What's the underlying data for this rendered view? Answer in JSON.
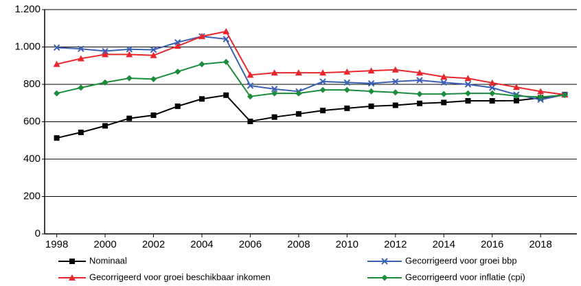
{
  "chart_data": {
    "type": "line",
    "x": [
      1998,
      1999,
      2000,
      2001,
      2002,
      2003,
      2004,
      2005,
      2006,
      2007,
      2008,
      2009,
      2010,
      2011,
      2012,
      2013,
      2014,
      2015,
      2016,
      2017,
      2018,
      2019
    ],
    "xlim": [
      1997.5,
      2019.5
    ],
    "xticks": [
      1998,
      2000,
      2002,
      2004,
      2006,
      2008,
      2010,
      2012,
      2014,
      2016,
      2018
    ],
    "ylim": [
      0,
      1200
    ],
    "yticks": [
      0,
      200,
      400,
      600,
      800,
      {
        "value": 1000,
        "label": "1.000"
      },
      {
        "value": 1200,
        "label": "1.200"
      }
    ],
    "grid": true,
    "series": [
      {
        "name": "Nominaal",
        "color": "#000000",
        "marker": "square",
        "values": [
          513,
          543,
          578,
          618,
          635,
          683,
          722,
          742,
          602,
          625,
          642,
          660,
          672,
          683,
          688,
          698,
          703,
          712,
          712,
          713,
          728,
          745
        ]
      },
      {
        "name": "Gecorrigeerd voor groei bbp",
        "color": "#3a5fb4",
        "marker": "x",
        "values": [
          997,
          990,
          978,
          988,
          985,
          1025,
          1057,
          1042,
          793,
          775,
          762,
          815,
          810,
          805,
          815,
          822,
          810,
          800,
          782,
          745,
          718,
          745
        ]
      },
      {
        "name": "Gecorrigeerd voor groei beschikbaar inkomen",
        "color": "#e8262c",
        "marker": "triangle",
        "values": [
          908,
          938,
          960,
          960,
          955,
          1005,
          1057,
          1083,
          850,
          862,
          862,
          862,
          867,
          873,
          878,
          862,
          840,
          832,
          808,
          785,
          762,
          745
        ]
      },
      {
        "name": "Gecorrigeerd voor inflatie (cpi)",
        "color": "#1a8c3c",
        "marker": "diamond",
        "values": [
          752,
          782,
          810,
          833,
          828,
          868,
          908,
          920,
          735,
          752,
          752,
          770,
          770,
          763,
          757,
          748,
          748,
          752,
          752,
          738,
          732,
          742
        ]
      }
    ]
  }
}
